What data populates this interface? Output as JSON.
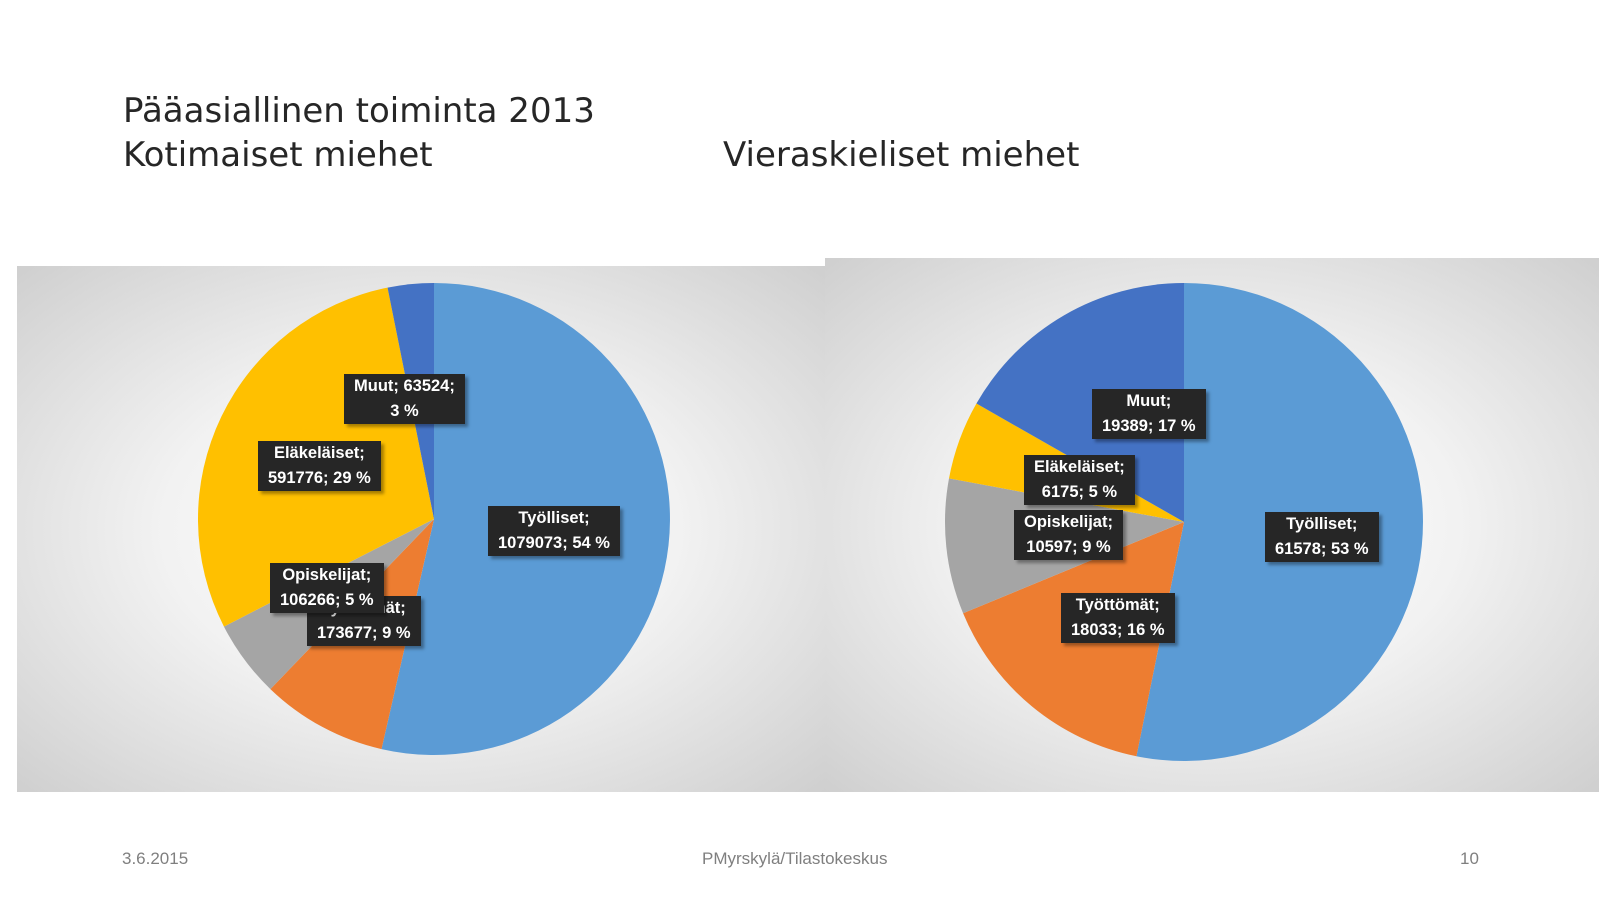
{
  "title": {
    "line1": "Pääasiallinen toiminta 2013",
    "line2": "Kotimaiset miehet",
    "line3": "Vieraskieliset miehet"
  },
  "chart_data": [
    {
      "type": "pie",
      "name": "Kotimaiset miehet",
      "start_angle_deg": 0,
      "direction": "clockwise",
      "slices": [
        {
          "category": "Työlliset",
          "value": 1079073,
          "percent": 54,
          "color": "#5b9bd5",
          "label_line1": "Työlliset;",
          "label_line2": "1079073; 54 %"
        },
        {
          "category": "Työttömät",
          "value": 173677,
          "percent": 9,
          "color": "#ed7d31",
          "label_line1": "Työttömät;",
          "label_line2": "173677; 9 %"
        },
        {
          "category": "Opiskelijat",
          "value": 106266,
          "percent": 5,
          "color": "#a5a5a5",
          "label_line1": "Opiskelijat;",
          "label_line2": "106266; 5 %"
        },
        {
          "category": "Eläkeläiset",
          "value": 591776,
          "percent": 29,
          "color": "#ffc000",
          "label_line1": "Eläkeläiset;",
          "label_line2": "591776; 29 %"
        },
        {
          "category": "Muut",
          "value": 63524,
          "percent": 3,
          "color": "#4472c4",
          "label_line1": "Muut; 63524;",
          "label_line2": "3 %"
        }
      ]
    },
    {
      "type": "pie",
      "name": "Vieraskieliset miehet",
      "start_angle_deg": 0,
      "direction": "clockwise",
      "slices": [
        {
          "category": "Työlliset",
          "value": 61578,
          "percent": 53,
          "color": "#5b9bd5",
          "label_line1": "Työlliset;",
          "label_line2": "61578; 53 %"
        },
        {
          "category": "Työttömät",
          "value": 18033,
          "percent": 16,
          "color": "#ed7d31",
          "label_line1": "Työttömät;",
          "label_line2": "18033; 16 %"
        },
        {
          "category": "Opiskelijat",
          "value": 10597,
          "percent": 9,
          "color": "#a5a5a5",
          "label_line1": "Opiskelijat;",
          "label_line2": "10597; 9 %"
        },
        {
          "category": "Eläkeläiset",
          "value": 6175,
          "percent": 5,
          "color": "#ffc000",
          "label_line1": "Eläkeläiset;",
          "label_line2": "6175; 5 %"
        },
        {
          "category": "Muut",
          "value": 19389,
          "percent": 17,
          "color": "#4472c4",
          "label_line1": "Muut;",
          "label_line2": "19389; 17 %"
        }
      ]
    }
  ],
  "footer": {
    "date": "3.6.2015",
    "source": "PMyrskylä/Tilastokeskus",
    "page": "10"
  }
}
